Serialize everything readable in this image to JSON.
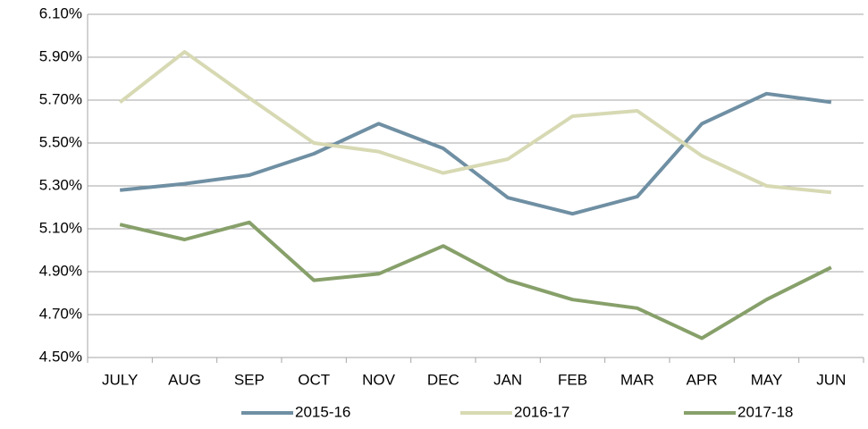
{
  "chart_data": {
    "type": "line",
    "categories": [
      "JULY",
      "AUG",
      "SEP",
      "OCT",
      "NOV",
      "DEC",
      "JAN",
      "FEB",
      "MAR",
      "APR",
      "MAY",
      "JUN"
    ],
    "series": [
      {
        "name": "2015-16",
        "color": "#6f8fa3",
        "values": [
          5.28,
          5.31,
          5.35,
          5.45,
          5.59,
          5.475,
          5.245,
          5.17,
          5.25,
          5.59,
          5.73,
          5.69
        ]
      },
      {
        "name": "2016-17",
        "color": "#d7d9b3",
        "values": [
          5.69,
          5.925,
          5.71,
          5.5,
          5.46,
          5.36,
          5.425,
          5.625,
          5.65,
          5.44,
          5.3,
          5.27
        ]
      },
      {
        "name": "2017-18",
        "color": "#87a06a",
        "values": [
          5.12,
          5.05,
          5.13,
          4.86,
          4.89,
          5.02,
          4.86,
          4.77,
          4.73,
          4.59,
          4.77,
          4.92
        ]
      }
    ],
    "ylim": [
      4.5,
      6.1
    ],
    "yticks": [
      {
        "value": 4.5,
        "label": "4.50%"
      },
      {
        "value": 4.7,
        "label": "4.70%"
      },
      {
        "value": 4.9,
        "label": "4.90%"
      },
      {
        "value": 5.1,
        "label": "5.10%"
      },
      {
        "value": 5.3,
        "label": "5.30%"
      },
      {
        "value": 5.5,
        "label": "5.50%"
      },
      {
        "value": 5.7,
        "label": "5.70%"
      },
      {
        "value": 5.9,
        "label": "5.90%"
      },
      {
        "value": 6.1,
        "label": "6.10%"
      }
    ],
    "grid": true,
    "legend": "bottom"
  }
}
